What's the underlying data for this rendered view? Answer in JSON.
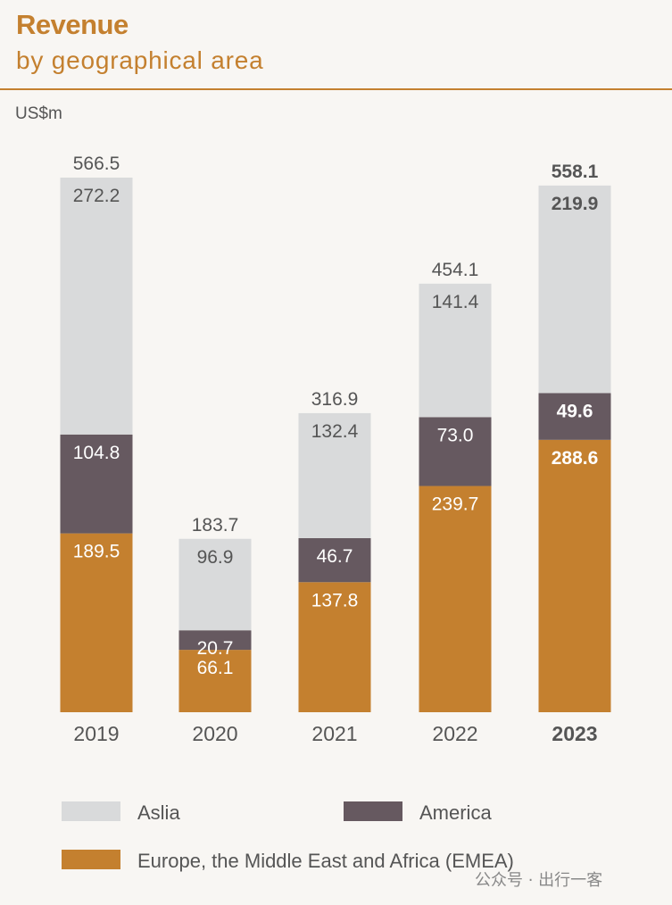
{
  "title": "Revenue",
  "subtitle": "by geographical area",
  "unit": "US$m",
  "watermark": "公众号 · 出行一客",
  "colors": {
    "asia": "#d9dadb",
    "america": "#665960",
    "emea": "#c4802f",
    "text": "#555555"
  },
  "chart_data": {
    "type": "bar",
    "stacked": true,
    "categories": [
      "2019",
      "2020",
      "2021",
      "2022",
      "2023"
    ],
    "highlight_category": "2023",
    "series": [
      {
        "name": "Europe, the Middle East and Africa (EMEA)",
        "key": "emea",
        "values": [
          189.5,
          66.1,
          137.8,
          239.7,
          288.6
        ]
      },
      {
        "name": "America",
        "key": "america",
        "values": [
          104.8,
          20.7,
          46.7,
          73.0,
          49.6
        ]
      },
      {
        "name": "Aslia",
        "key": "asia",
        "values": [
          272.2,
          96.9,
          132.4,
          141.4,
          219.9
        ]
      }
    ],
    "totals": [
      566.5,
      183.7,
      316.9,
      454.1,
      558.1
    ],
    "ylabel": "US$m",
    "legend_position": "bottom"
  },
  "legend": [
    {
      "key": "asia",
      "label": "Aslia"
    },
    {
      "key": "america",
      "label": "America"
    },
    {
      "key": "emea",
      "label": "Europe, the Middle East and Africa (EMEA)"
    }
  ]
}
